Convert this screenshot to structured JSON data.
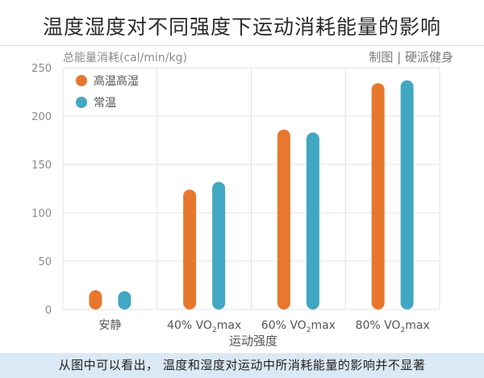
{
  "title": "温度湿度对不同强度下运动消耗能量的影响",
  "caption": "从图中可以看出， 温度和湿度对运动中所消耗能量的影响并不显著",
  "chart_data": {
    "type": "bar",
    "ylabel": "总能量消耗(cal/min/kg)",
    "xlabel": "运动强度",
    "watermark": "制图 | 硬派健身",
    "ylim": [
      0,
      250
    ],
    "yticks": [
      0,
      50,
      100,
      150,
      200,
      250
    ],
    "categories": [
      {
        "label": "安静",
        "sub": ""
      },
      {
        "label": "40% VO",
        "sub": "2",
        "suffix": "max"
      },
      {
        "label": "60% VO",
        "sub": "2",
        "suffix": "max"
      },
      {
        "label": "80% VO",
        "sub": "2",
        "suffix": "max"
      }
    ],
    "series": [
      {
        "name": "高温高湿",
        "color": "#e8772e",
        "values": [
          20,
          124,
          186,
          234
        ]
      },
      {
        "name": "常温",
        "color": "#41a7c2",
        "values": [
          19,
          132,
          183,
          237
        ]
      }
    ],
    "grid": true,
    "legend_position": "top-left"
  }
}
